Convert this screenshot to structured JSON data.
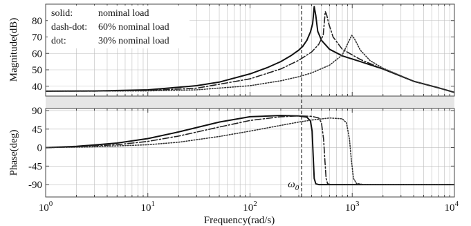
{
  "chart_data": {
    "type": "line",
    "title": "",
    "xlabel": "Frequency(rad/s)",
    "xscale": "log",
    "xlim": [
      1,
      10000
    ],
    "x_ticks": [
      1,
      10,
      100,
      1000,
      10000
    ],
    "x_tick_labels": [
      {
        "base": "10",
        "exp": "0"
      },
      {
        "base": "10",
        "exp": "1"
      },
      {
        "base": "10",
        "exp": "2"
      },
      {
        "base": "10",
        "exp": "3"
      },
      {
        "base": "10",
        "exp": "4"
      }
    ],
    "grid": true,
    "legend": {
      "placement": "top-left",
      "entries": [
        {
          "style": "solid:",
          "label": "nominal load"
        },
        {
          "style": "dash-dot:",
          "label": "60% nominal load"
        },
        {
          "style": "dot:",
          "label": "30% nominal load"
        }
      ]
    },
    "annotation": {
      "symbol": "ω",
      "subscript": "0",
      "x": 320
    },
    "panels": [
      {
        "name": "magnitude",
        "ylabel": "Magnitude(dB)",
        "ylim": [
          34,
          90
        ],
        "yticks": [
          40,
          50,
          60,
          70,
          80
        ],
        "ytick_labels": [
          "40",
          "50",
          "60",
          "70",
          "80"
        ],
        "series": [
          {
            "label": "solid",
            "dash": "",
            "width": 2.0,
            "color": "#111111",
            "x": [
              1,
              3,
              10,
              30,
              50,
              100,
              150,
              200,
              250,
              300,
              330,
              360,
              390,
              410,
              425,
              440,
              460,
              500,
              600,
              800,
              1200,
              2000,
              4000,
              7000,
              11000
            ],
            "y": [
              37,
              37.1,
              37.8,
              40.3,
              42.5,
              47.5,
              51.5,
              55,
              58.5,
              62,
              64.5,
              68,
              73,
              78,
              88.5,
              83,
              73.5,
              68,
              62.5,
              58.5,
              55,
              50.5,
              43,
              39,
              35.5
            ]
          },
          {
            "label": "dash-dot",
            "dash": "9 3 2 3",
            "width": 1.6,
            "color": "#222222",
            "x": [
              1,
              3,
              10,
              30,
              100,
              200,
              300,
              400,
              470,
              520,
              545,
              560,
              590,
              650,
              800,
              1200,
              2000,
              4000,
              7000,
              11000
            ],
            "y": [
              37,
              37.05,
              37.4,
              38.8,
              44.5,
              50.5,
              55.8,
              60.8,
              65.5,
              71,
              85.5,
              84,
              78,
              70,
              62.5,
              56.3,
              50.5,
              43,
              39,
              35.5
            ]
          },
          {
            "label": "dot",
            "dash": "1.5 2.2",
            "width": 1.6,
            "color": "#333333",
            "x": [
              1,
              3,
              10,
              30,
              100,
              200,
              300,
              400,
              600,
              800,
              920,
              990,
              1050,
              1200,
              1500,
              2000,
              4000,
              7000,
              11000
            ],
            "y": [
              37,
              37.02,
              37.15,
              37.8,
              40.3,
              43.3,
              45.8,
              48.1,
              52.8,
              59,
              67,
              71,
              69,
              62,
              55.5,
              51,
              43,
              39,
              35.5
            ]
          }
        ]
      },
      {
        "name": "phase",
        "ylabel": "Phase(deg)",
        "ylim": [
          -120,
          95
        ],
        "yticks": [
          90,
          45,
          0,
          -45,
          -90
        ],
        "ytick_labels": [
          "90",
          "45",
          "0",
          "-45",
          "-90"
        ],
        "series": [
          {
            "label": "solid",
            "dash": "",
            "width": 2.0,
            "color": "#111111",
            "x": [
              1,
              2,
              5,
              10,
              20,
              50,
              100,
              200,
              300,
              360,
              390,
              405,
              415,
              425,
              440,
              470,
              600,
              1000,
              11000
            ],
            "y": [
              0,
              3,
              11,
              22,
              38,
              62,
              75,
              78,
              77,
              74,
              65,
              40,
              -20,
              -75,
              -88,
              -90,
              -90,
              -90,
              -90
            ]
          },
          {
            "label": "dash-dot",
            "dash": "9 3 2 3",
            "width": 1.6,
            "color": "#222222",
            "x": [
              1,
              2,
              5,
              10,
              20,
              50,
              100,
              200,
              300,
              400,
              470,
              500,
              525,
              540,
              555,
              575,
              620,
              800,
              11000
            ],
            "y": [
              0,
              2,
              7,
              15,
              28,
              50,
              66,
              75,
              77,
              76,
              72,
              60,
              20,
              -30,
              -75,
              -88,
              -90,
              -90,
              -90
            ]
          },
          {
            "label": "dot",
            "dash": "1.5 2.2",
            "width": 1.6,
            "color": "#333333",
            "x": [
              1,
              3,
              10,
              20,
              50,
              100,
              200,
              300,
              400,
              600,
              800,
              880,
              940,
              980,
              1030,
              1100,
              1300,
              2000,
              11000
            ],
            "y": [
              0,
              2,
              7,
              13,
              27,
              40,
              54,
              62,
              67,
              72,
              70,
              60,
              20,
              -30,
              -75,
              -87,
              -90,
              -90,
              -90
            ]
          }
        ]
      }
    ]
  }
}
